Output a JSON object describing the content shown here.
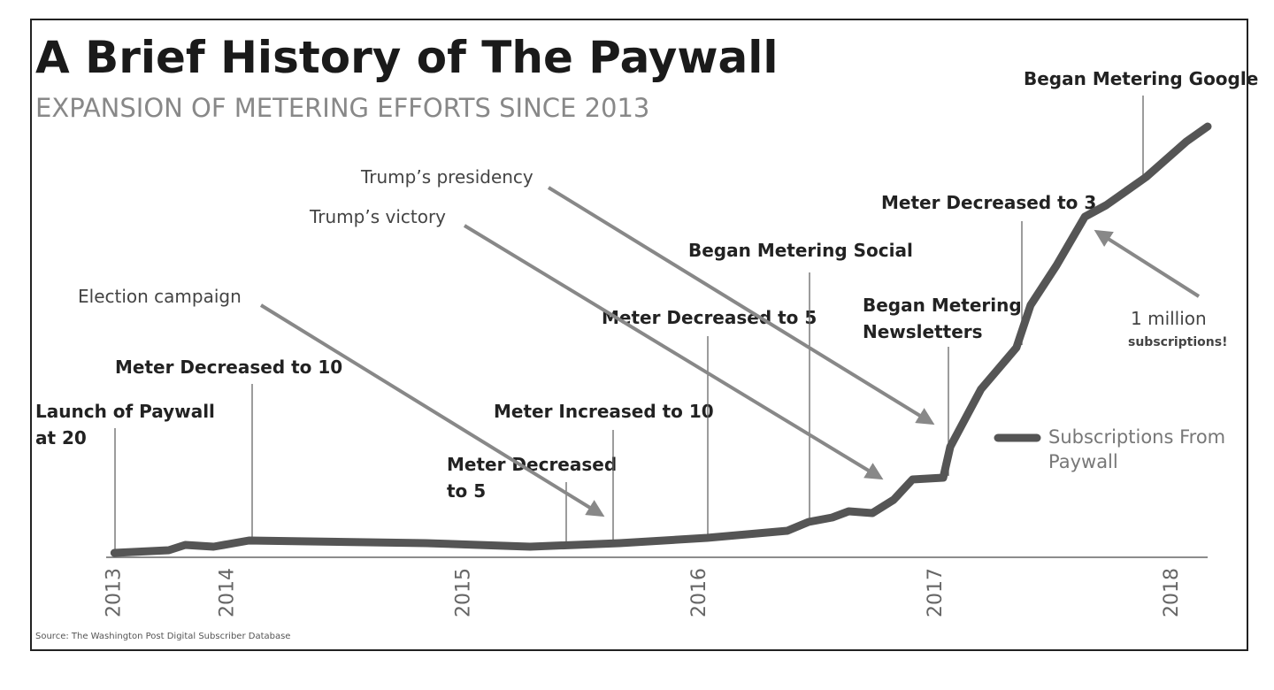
{
  "chart_data": {
    "type": "line",
    "title": "A Brief History of The Paywall",
    "subtitle": "EXPANSION OF METERING EFFORTS SINCE 2013",
    "source": "Source: The Washington Post Digital Subscriber Database",
    "x": [
      2013.52,
      2013.75,
      2013.82,
      2013.94,
      2014.09,
      2014.84,
      2015.28,
      2015.66,
      2016.03,
      2016.37,
      2016.46,
      2016.56,
      2016.63,
      2016.73,
      2016.82,
      2016.9,
      2017.03,
      2017.06,
      2017.19,
      2017.34,
      2017.4,
      2017.51,
      2017.63,
      2017.72,
      2017.89,
      2018.06,
      2018.15
    ],
    "series": [
      {
        "name": "Subscriptions From Paywall",
        "color": "#555555",
        "values": [
          1,
          1.6,
          2.8,
          2.4,
          3.8,
          3.2,
          2.4,
          3.2,
          4.4,
          6,
          8,
          9,
          10.4,
          10,
          13,
          17.6,
          18,
          25,
          38,
          47.4,
          57,
          66,
          77,
          79.6,
          86,
          94,
          97.4
        ]
      }
    ],
    "xlim": [
      2013.5,
      2018.15
    ],
    "ylim": [
      0,
      100
    ],
    "xticks": [
      {
        "value": 2013.52,
        "label": "2013"
      },
      2014,
      2015,
      2016,
      2017,
      2018
    ],
    "events": [
      {
        "lines": [
          "Launch of Paywall",
          "at 20"
        ]
      },
      {
        "lines": [
          "Meter Decreased to 10"
        ]
      },
      {
        "lines": [
          "Meter Decreased",
          "to 5"
        ]
      },
      {
        "lines": [
          "Meter Increased to 10"
        ]
      },
      {
        "lines": [
          "Meter Decreased to 5"
        ]
      },
      {
        "lines": [
          "Began Metering Social"
        ]
      },
      {
        "lines": [
          "Began Metering",
          "Newsletters"
        ]
      },
      {
        "lines": [
          "Meter Decreased to 3"
        ]
      },
      {
        "lines": [
          "Began Metering Google"
        ]
      }
    ],
    "callouts": [
      {
        "lines": [
          "Election campaign"
        ]
      },
      {
        "lines": [
          "Trump’s victory"
        ]
      },
      {
        "lines": [
          "Trump’s presidency"
        ]
      },
      {
        "lines": [
          "1 million",
          "subscriptions!"
        ]
      }
    ]
  }
}
